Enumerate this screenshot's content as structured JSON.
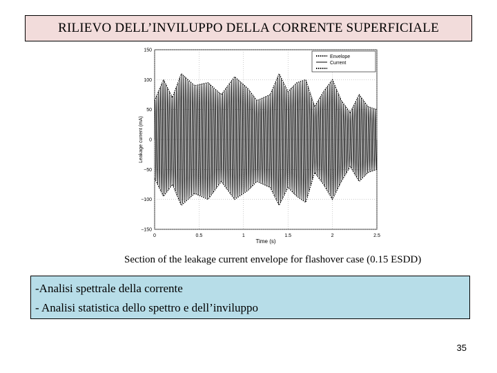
{
  "slide": {
    "title": "RILIEVO DELL’INVILUPPO DELLA CORRENTE SUPERFICIALE",
    "caption": "Section of the leakage current envelope for flashover case (0.15 ESDD)",
    "bullets": [
      "-Analisi spettrale della corrente",
      "- Analisi statistica dello spettro e dell’inviluppo"
    ],
    "page_number": "35"
  },
  "chart_data": {
    "type": "line",
    "xlabel": "Time (s)",
    "ylabel": "Leakage current (mA)",
    "xlim": [
      0,
      2.5
    ],
    "ylim": [
      -150,
      150
    ],
    "xticks": [
      "0",
      "0.5",
      "1",
      "1.5",
      "2",
      "2.5"
    ],
    "yticks": [
      "150",
      "100",
      "50",
      "0",
      "−50",
      "−100",
      "−150"
    ],
    "grid": true,
    "legend_position": "top-right",
    "legend": [
      "Envelope",
      "Current"
    ],
    "envelope_upper": {
      "x": [
        0,
        0.1,
        0.2,
        0.3,
        0.45,
        0.6,
        0.75,
        0.9,
        1.05,
        1.15,
        1.3,
        1.4,
        1.5,
        1.6,
        1.7,
        1.8,
        1.9,
        2.0,
        2.1,
        2.2,
        2.3,
        2.4,
        2.5
      ],
      "y": [
        65,
        100,
        70,
        110,
        90,
        95,
        75,
        105,
        85,
        65,
        75,
        110,
        80,
        95,
        100,
        55,
        80,
        100,
        65,
        45,
        75,
        55,
        50
      ]
    },
    "envelope_lower": {
      "x": [
        0,
        0.1,
        0.2,
        0.3,
        0.45,
        0.6,
        0.75,
        0.9,
        1.05,
        1.15,
        1.3,
        1.4,
        1.5,
        1.6,
        1.7,
        1.8,
        1.9,
        2.0,
        2.1,
        2.2,
        2.3,
        2.4,
        2.5
      ],
      "y": [
        -65,
        -95,
        -75,
        -110,
        -90,
        -100,
        -70,
        -100,
        -85,
        -70,
        -80,
        -110,
        -80,
        -95,
        -105,
        -55,
        -75,
        -100,
        -70,
        -45,
        -70,
        -55,
        -50
      ]
    },
    "colors": {
      "current": "#000000",
      "envelope": "#000000"
    }
  }
}
